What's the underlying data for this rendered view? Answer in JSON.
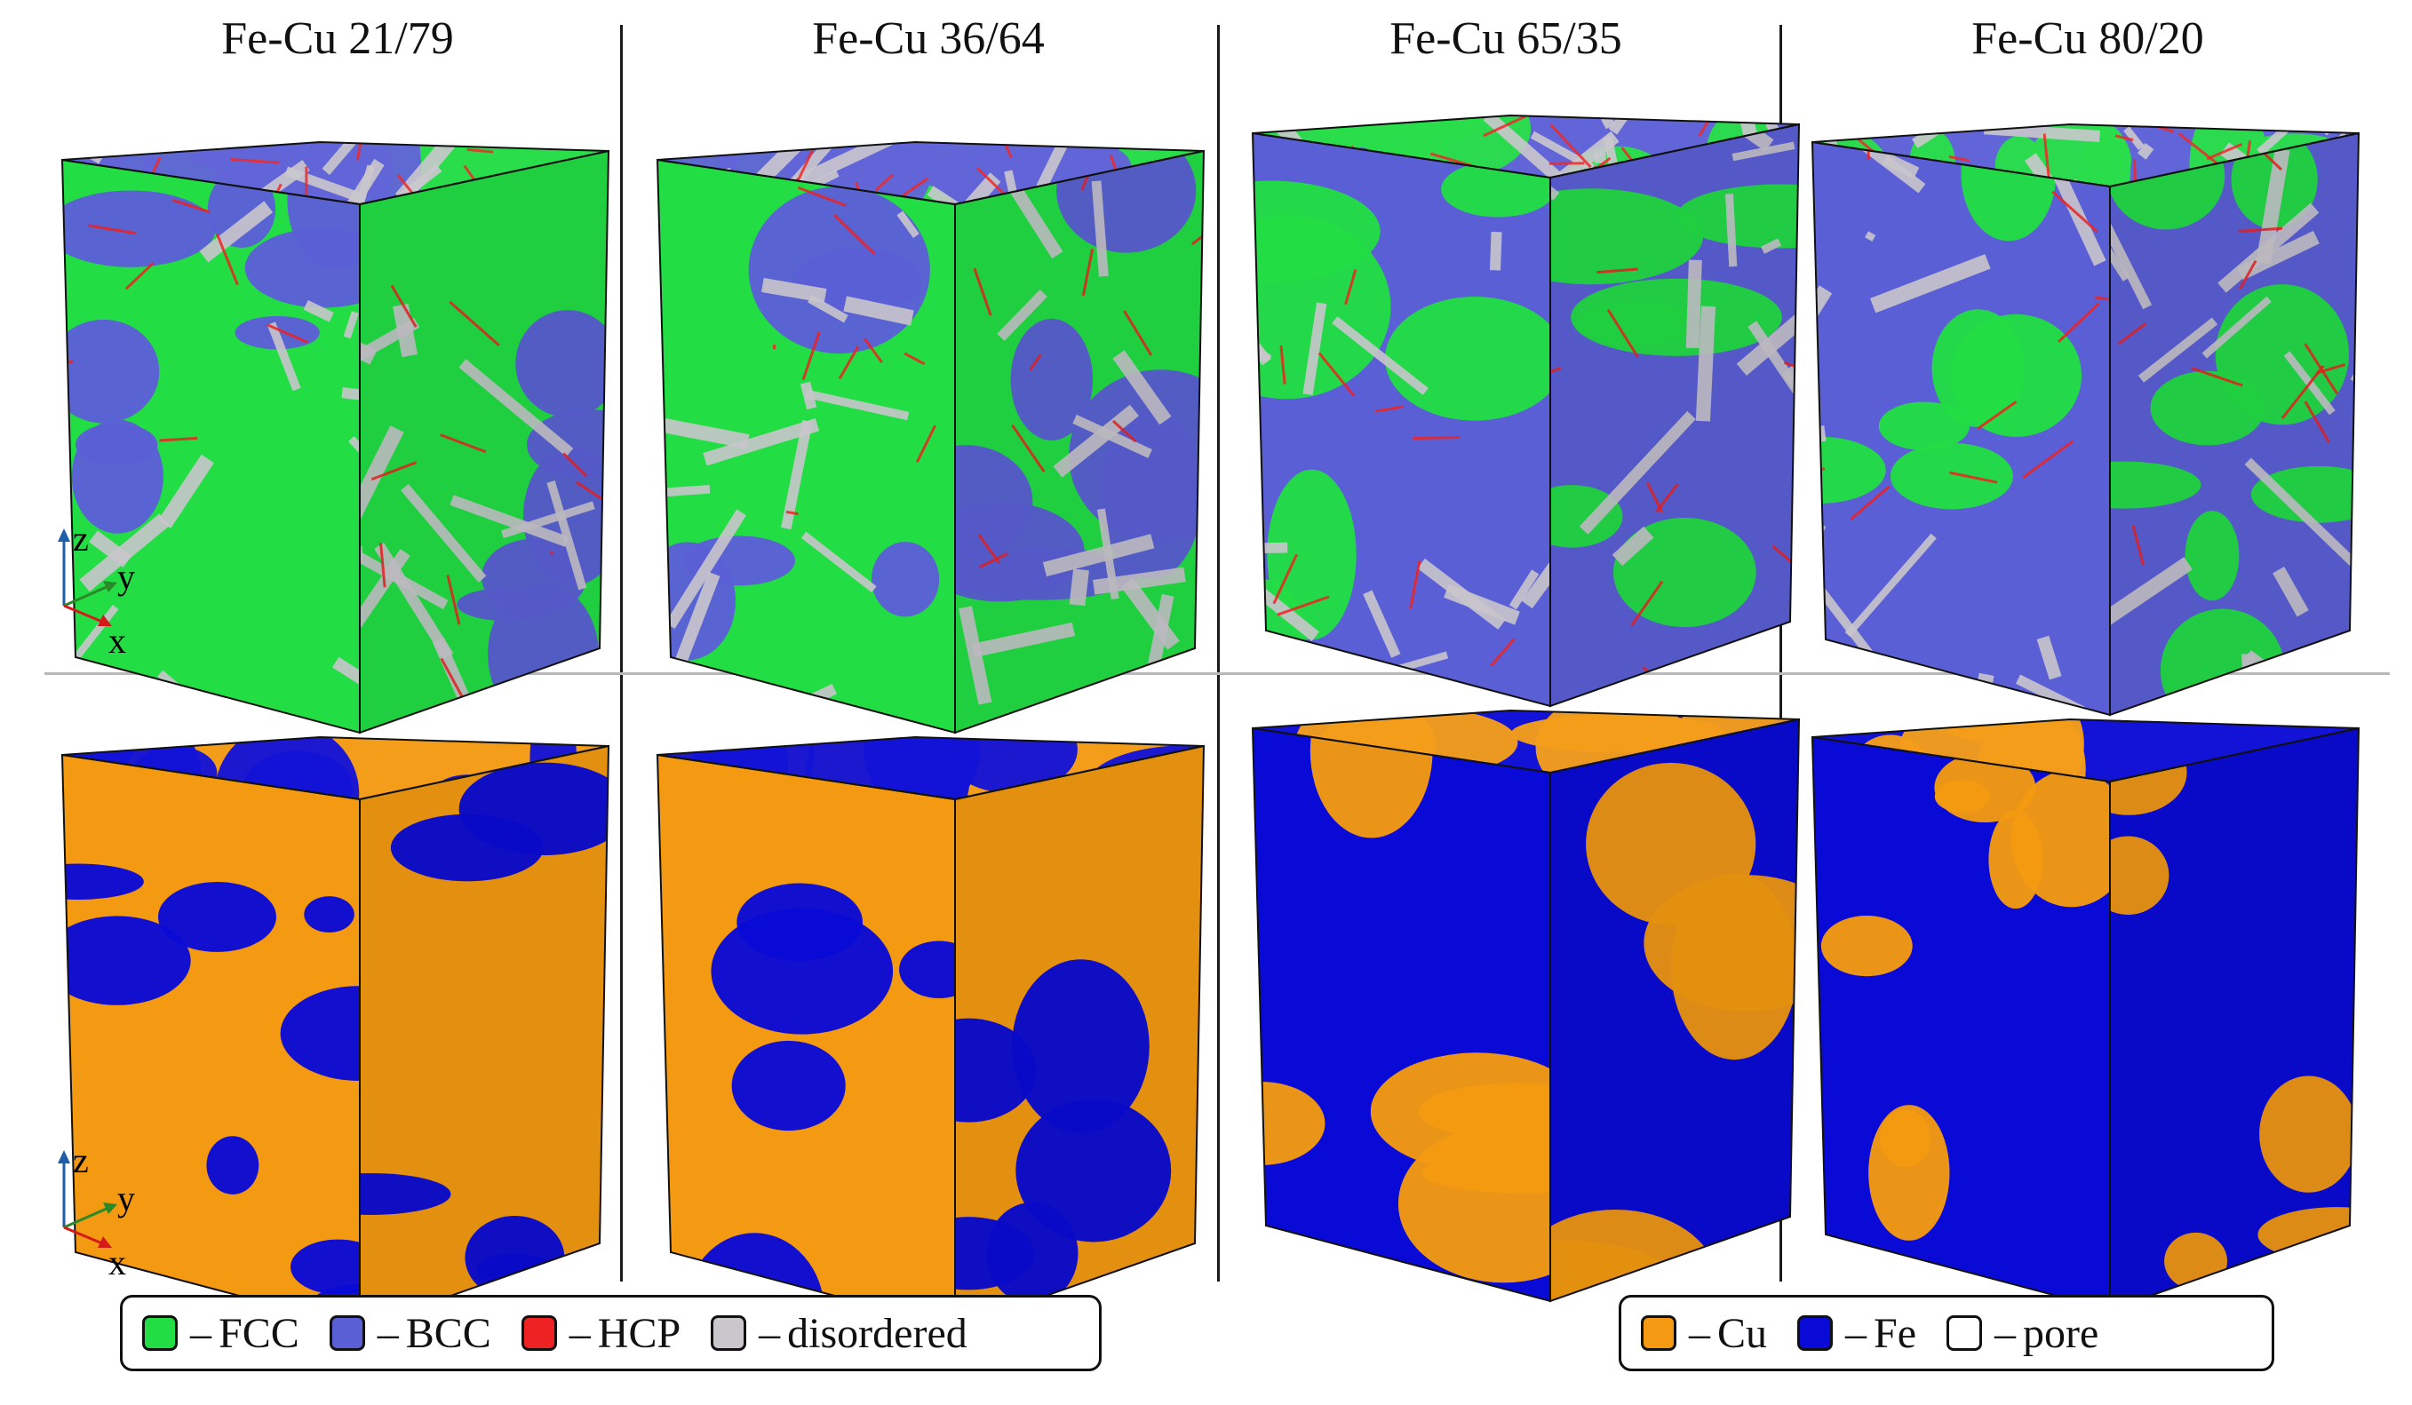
{
  "columns": [
    {
      "title": "Fe-Cu 21/79"
    },
    {
      "title": "Fe-Cu 36/64"
    },
    {
      "title": "Fe-Cu 65/35"
    },
    {
      "title": "Fe-Cu 80/20"
    }
  ],
  "axes_labels": {
    "z": "z",
    "y": "y",
    "x": "x"
  },
  "legend_structure": {
    "items": [
      {
        "dash": "–",
        "label": "FCC",
        "color": "#22dd44"
      },
      {
        "dash": "–",
        "label": "BCC",
        "color": "#5b5fd6"
      },
      {
        "dash": "–",
        "label": "HCP",
        "color": "#ee2222"
      },
      {
        "dash": "–",
        "label": "disordered",
        "color": "#c9c6cc"
      }
    ]
  },
  "legend_composition": {
    "items": [
      {
        "dash": "–",
        "label": "Cu",
        "color": "#f39a12"
      },
      {
        "dash": "–",
        "label": "Fe",
        "color": "#0a0ad6"
      },
      {
        "dash": "–",
        "label": "pore",
        "color": "#ffffff"
      }
    ]
  },
  "palette": {
    "fcc": "#22dd44",
    "bcc": "#5b5fd6",
    "hcp": "#ee2222",
    "disordered": "#c9c6cc",
    "cu": "#f39a12",
    "fe": "#0a0ad6",
    "pore": "#ffffff"
  }
}
